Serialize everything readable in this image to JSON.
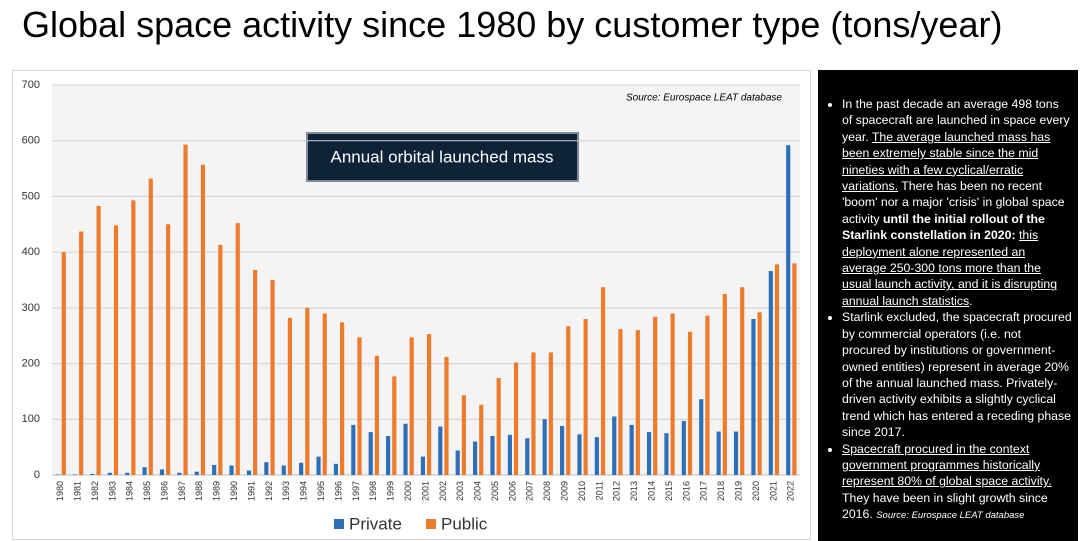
{
  "header": {
    "title": "Global space activity since 1980 by customer type (tons/year)"
  },
  "chart_data": {
    "type": "bar",
    "annotation": "Annual orbital launched mass",
    "source": "Source: Eurospace LEAT database",
    "categories": [
      "1980",
      "1981",
      "1982",
      "1983",
      "1984",
      "1985",
      "1986",
      "1987",
      "1988",
      "1989",
      "1990",
      "1991",
      "1992",
      "1993",
      "1994",
      "1995",
      "1996",
      "1997",
      "1998",
      "1999",
      "2000",
      "2001",
      "2002",
      "2003",
      "2004",
      "2005",
      "2006",
      "2007",
      "2008",
      "2009",
      "2010",
      "2011",
      "2012",
      "2013",
      "2014",
      "2015",
      "2016",
      "2017",
      "2018",
      "2019",
      "2020",
      "2021",
      "2022"
    ],
    "series": [
      {
        "name": "Private",
        "color": "#2e6fba",
        "values": [
          1,
          1,
          2,
          4,
          4,
          14,
          10,
          4,
          6,
          18,
          17,
          8,
          23,
          17,
          22,
          33,
          20,
          90,
          77,
          70,
          92,
          33,
          87,
          44,
          60,
          70,
          72,
          66,
          100,
          88,
          73,
          68,
          105,
          90,
          77,
          75,
          97,
          136,
          78,
          78,
          280,
          366,
          592
        ]
      },
      {
        "name": "Public",
        "color": "#ee7a2c",
        "values": [
          400,
          437,
          483,
          448,
          493,
          532,
          450,
          593,
          557,
          413,
          452,
          368,
          350,
          282,
          300,
          290,
          274,
          247,
          214,
          177,
          247,
          253,
          212,
          143,
          126,
          174,
          202,
          220,
          220,
          267,
          280,
          337,
          262,
          260,
          284,
          290,
          257,
          286,
          325,
          337,
          292,
          378,
          380
        ]
      }
    ],
    "ylim": [
      0,
      700
    ],
    "yticks": [
      0,
      100,
      200,
      300,
      400,
      500,
      600,
      700
    ],
    "grid": true,
    "legend": "bottom"
  },
  "notes": {
    "bullets": [
      [
        {
          "text": "In the past decade an average 498 tons of spacecraft are launched in space every year. ",
          "style": "normal"
        },
        {
          "text": "The average launched mass has been extremely stable since the mid nineties with a few cyclical/erratic variations.",
          "style": "underline"
        },
        {
          "text": " There has been no recent 'boom' nor a major 'crisis' in global space activity ",
          "style": "normal"
        },
        {
          "text": "until the initial rollout of the Starlink constellation in 2020:",
          "style": "bold"
        },
        {
          "text": " ",
          "style": "normal"
        },
        {
          "text": "this deployment alone represented an average 250-300 tons more than the usual launch activity, and it is disrupting annual launch statistics",
          "style": "underline"
        },
        {
          "text": ".",
          "style": "normal"
        }
      ],
      [
        {
          "text": "Starlink excluded, the spacecraft procured by commercial operators (i.e. not procured by institutions or government-owned entities) represent in average 20% of the annual launched mass. Privately-driven activity exhibits a slightly cyclical trend which has entered a receding phase since 2017.",
          "style": "normal"
        }
      ],
      [
        {
          "text": "Spacecraft procured in the context government programmes historically represent 80% of global space activity.",
          "style": "underline"
        },
        {
          "text": " They have been in slight growth since 2016.  ",
          "style": "normal"
        },
        {
          "text": "Source: Eurospace LEAT database",
          "style": "italic"
        }
      ]
    ]
  }
}
